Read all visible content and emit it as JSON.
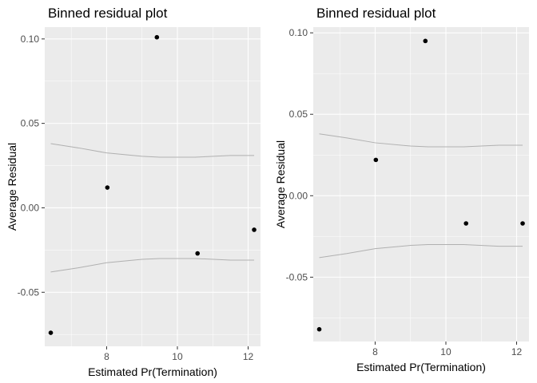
{
  "chart_data": [
    {
      "type": "scatter",
      "title": "Binned residual plot",
      "xlabel": "Estimated Pr(Termination)",
      "ylabel": "Average Residual",
      "xlim": [
        6.25,
        12.35
      ],
      "ylim": [
        -0.082,
        0.107
      ],
      "x_ticks": [
        8,
        10,
        12
      ],
      "x_tick_labels": [
        "8",
        "10",
        "12"
      ],
      "y_ticks": [
        -0.05,
        0.0,
        0.05,
        0.1
      ],
      "y_tick_labels": [
        "-0.05",
        "0.00",
        "0.05",
        "0.10"
      ],
      "points": [
        {
          "x": 6.42,
          "y": -0.074
        },
        {
          "x": 8.02,
          "y": 0.012
        },
        {
          "x": 9.42,
          "y": 0.101
        },
        {
          "x": 10.57,
          "y": -0.027
        },
        {
          "x": 12.17,
          "y": -0.013
        }
      ],
      "band_upper": [
        [
          6.42,
          0.038
        ],
        [
          7.2,
          0.0355
        ],
        [
          8.0,
          0.0325
        ],
        [
          9.0,
          0.0305
        ],
        [
          9.5,
          0.03
        ],
        [
          10.5,
          0.03
        ],
        [
          11.5,
          0.031
        ],
        [
          12.17,
          0.031
        ]
      ],
      "band_lower": [
        [
          6.42,
          -0.038
        ],
        [
          7.2,
          -0.0355
        ],
        [
          8.0,
          -0.0325
        ],
        [
          9.0,
          -0.0305
        ],
        [
          9.5,
          -0.03
        ],
        [
          10.5,
          -0.03
        ],
        [
          11.5,
          -0.031
        ],
        [
          12.17,
          -0.031
        ]
      ],
      "grid": true,
      "colors": {
        "panel": "#ebebeb",
        "grid": "#ffffff",
        "point": "#000000",
        "band": "#b0b0b0"
      }
    },
    {
      "type": "scatter",
      "title": "Binned residual plot",
      "xlabel": "Estimated Pr(Termination)",
      "ylabel": "Average Residual",
      "xlim": [
        6.25,
        12.35
      ],
      "ylim": [
        -0.0895,
        0.1035
      ],
      "x_ticks": [
        8,
        10,
        12
      ],
      "x_tick_labels": [
        "8",
        "10",
        "12"
      ],
      "y_ticks": [
        -0.05,
        0.0,
        0.05,
        0.1
      ],
      "y_tick_labels": [
        "-0.05",
        "0.00",
        "0.05",
        "0.10"
      ],
      "points": [
        {
          "x": 6.42,
          "y": -0.082
        },
        {
          "x": 8.02,
          "y": 0.022
        },
        {
          "x": 9.42,
          "y": 0.095
        },
        {
          "x": 10.57,
          "y": -0.017
        },
        {
          "x": 12.17,
          "y": -0.017
        }
      ],
      "band_upper": [
        [
          6.42,
          0.038
        ],
        [
          7.2,
          0.0355
        ],
        [
          8.0,
          0.0325
        ],
        [
          9.0,
          0.0305
        ],
        [
          9.5,
          0.03
        ],
        [
          10.5,
          0.03
        ],
        [
          11.5,
          0.031
        ],
        [
          12.17,
          0.031
        ]
      ],
      "band_lower": [
        [
          6.42,
          -0.038
        ],
        [
          7.2,
          -0.0355
        ],
        [
          8.0,
          -0.0325
        ],
        [
          9.0,
          -0.0305
        ],
        [
          9.5,
          -0.03
        ],
        [
          10.5,
          -0.03
        ],
        [
          11.5,
          -0.031
        ],
        [
          12.17,
          -0.031
        ]
      ],
      "grid": true,
      "colors": {
        "panel": "#ebebeb",
        "grid": "#ffffff",
        "point": "#000000",
        "band": "#b0b0b0"
      }
    }
  ]
}
